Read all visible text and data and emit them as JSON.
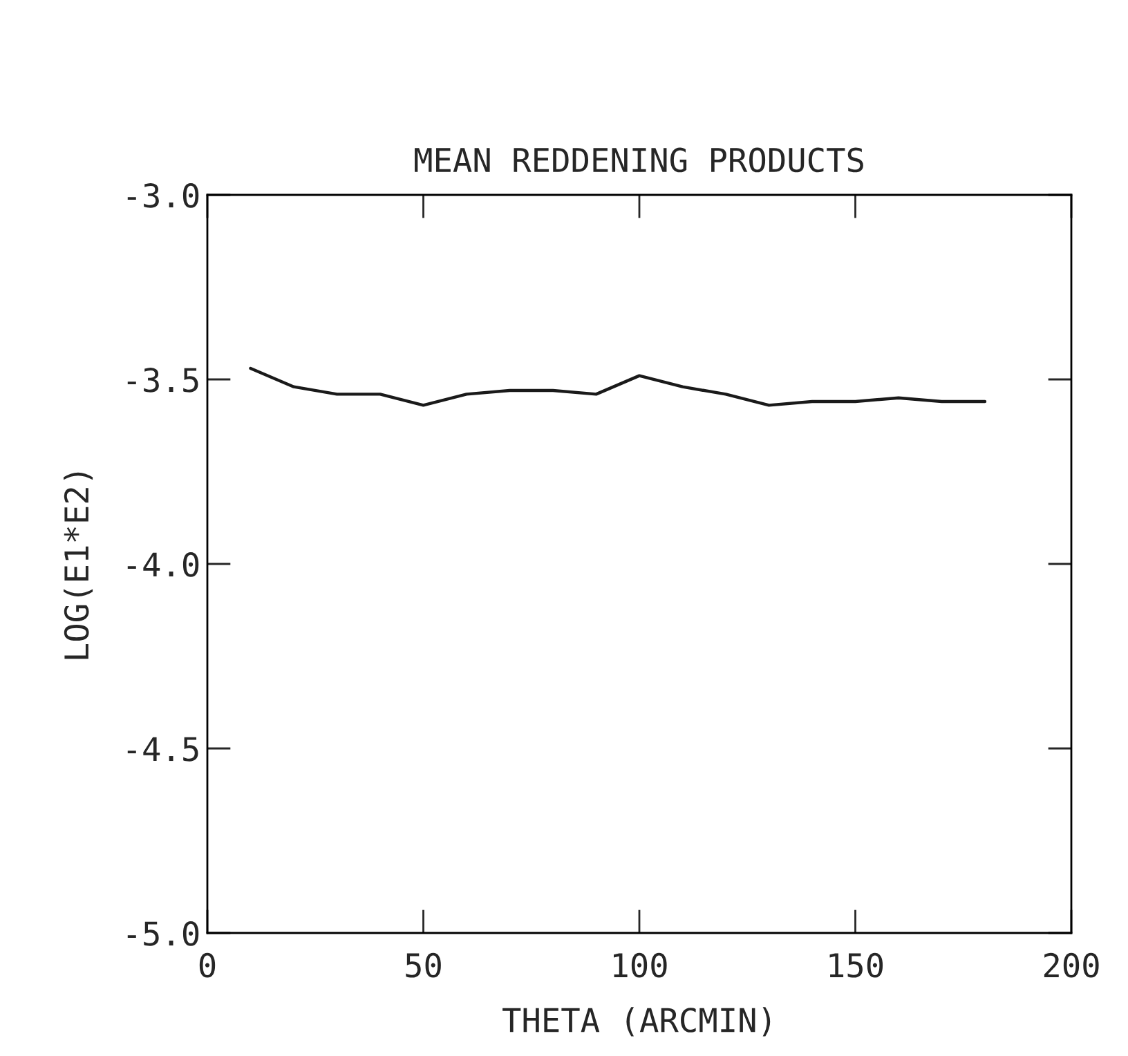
{
  "chart_data": {
    "type": "line",
    "title": "MEAN REDDENING PRODUCTS",
    "xlabel": "THETA (ARCMIN)",
    "ylabel": "LOG(E1*E2)",
    "x": [
      10,
      20,
      30,
      40,
      50,
      60,
      70,
      80,
      90,
      100,
      110,
      120,
      130,
      140,
      150,
      160,
      170,
      180
    ],
    "series": [
      {
        "color": "#1a1a1a",
        "values": [
          -3.47,
          -3.52,
          -3.54,
          -3.54,
          -3.57,
          -3.54,
          -3.53,
          -3.53,
          -3.54,
          -3.49,
          -3.52,
          -3.54,
          -3.57,
          -3.56,
          -3.56,
          -3.55,
          -3.56,
          -3.56
        ]
      }
    ],
    "xlim": [
      0,
      200
    ],
    "xticks": [
      0,
      50,
      100,
      150,
      200
    ],
    "ylim": [
      -5.0,
      -3.0
    ],
    "yticks": [
      {
        "value": -5.0,
        "label": "-5.0"
      },
      {
        "value": -4.5,
        "label": "-4.5"
      },
      {
        "value": -4.0,
        "label": "-4.0"
      },
      {
        "value": -3.5,
        "label": "-3.5"
      },
      {
        "value": -3.0,
        "label": "-3.0"
      }
    ],
    "grid": false,
    "legend": false,
    "marker": "none",
    "line_style": "solid"
  }
}
